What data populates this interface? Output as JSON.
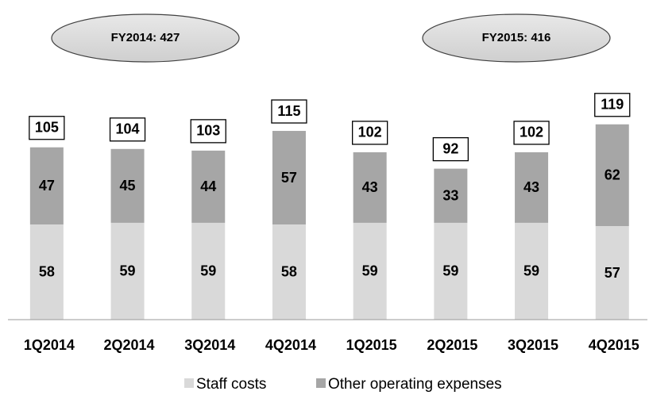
{
  "chart_data": {
    "type": "stacked_bar",
    "categories": [
      "1Q2014",
      "2Q2014",
      "3Q2014",
      "4Q2014",
      "1Q2015",
      "2Q2015",
      "3Q2015",
      "4Q2015"
    ],
    "series": [
      {
        "name": "Staff costs",
        "color": "#d9d9d9",
        "values": [
          58,
          59,
          59,
          58,
          59,
          59,
          59,
          57
        ]
      },
      {
        "name": "Other operating expenses",
        "color": "#a6a6a6",
        "values": [
          47,
          45,
          44,
          57,
          43,
          33,
          43,
          62
        ]
      }
    ],
    "totals": [
      105,
      104,
      103,
      115,
      102,
      92,
      102,
      119
    ],
    "annotations": [
      "FY2014: 427",
      "FY2015: 416"
    ],
    "ylim": [
      0,
      130
    ]
  }
}
